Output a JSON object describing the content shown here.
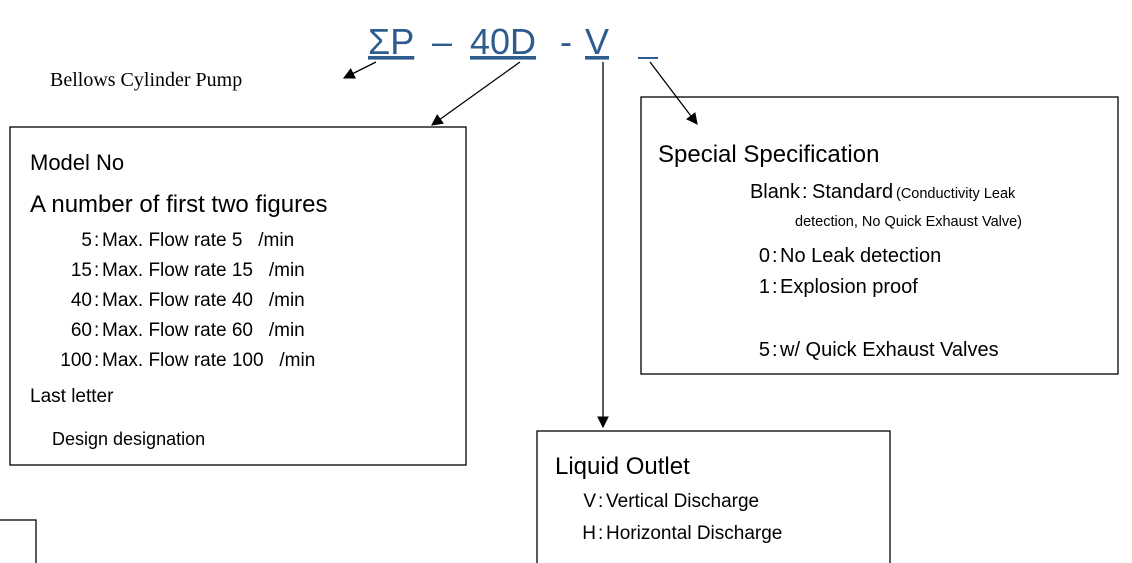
{
  "code": {
    "parts": [
      "ΣP",
      "40D",
      "V"
    ],
    "separators": [
      "–",
      "-"
    ]
  },
  "pump_label": "Bellows Cylinder Pump",
  "separator": ":",
  "model": {
    "title": "Model No",
    "subtitle": "A number of first two figures",
    "rows": [
      {
        "code": "5",
        "desc": "Max. Flow rate 5   /min"
      },
      {
        "code": "15",
        "desc": "Max. Flow rate 15   /min"
      },
      {
        "code": "40",
        "desc": "Max. Flow rate 40   /min"
      },
      {
        "code": "60",
        "desc": "Max. Flow rate 60   /min"
      },
      {
        "code": "100",
        "desc": "Max. Flow rate 100   /min"
      }
    ],
    "last_title": "Last letter",
    "last_desc": "Design designation"
  },
  "special": {
    "title": "Special Specification",
    "blank": {
      "code": "Blank",
      "desc": "Standard",
      "note": [
        "(Conductivity Leak",
        "detection, No Quick Exhaust Valve)"
      ]
    },
    "rows": [
      {
        "code": "0",
        "desc": "No Leak detection"
      },
      {
        "code": "1",
        "desc": "Explosion proof"
      },
      {
        "code": "5",
        "desc": "w/ Quick Exhaust Valves"
      }
    ]
  },
  "outlet": {
    "title": "Liquid Outlet",
    "rows": [
      {
        "code": "V",
        "desc": "Vertical Discharge"
      },
      {
        "code": "H",
        "desc": "Horizontal Discharge"
      }
    ]
  }
}
